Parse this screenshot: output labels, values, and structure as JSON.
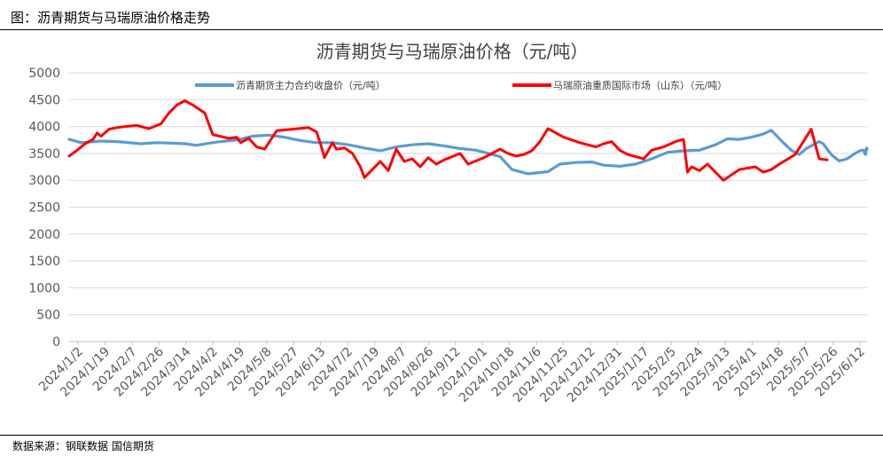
{
  "figure": {
    "caption": "图：沥青期货与马瑞原油价格走势",
    "source": "数据来源：钢联数据 国信期货"
  },
  "chart_data": {
    "type": "line",
    "title": "沥青期货与马瑞原油价格（元/吨）",
    "xlabel": "",
    "ylabel": "",
    "ylim": [
      0,
      5000
    ],
    "yticks": [
      0,
      500,
      1000,
      1500,
      2000,
      2500,
      3000,
      3500,
      4000,
      4500,
      5000
    ],
    "grid": "horizontal",
    "legend": "top",
    "x_tick_labels": [
      "2024/1/2",
      "2024/1/19",
      "2024/2/7",
      "2024/2/26",
      "2024/3/14",
      "2024/4/2",
      "2024/4/19",
      "2024/5/8",
      "2024/5/27",
      "2024/6/13",
      "2024/7/2",
      "2024/7/19",
      "2024/8/7",
      "2024/8/26",
      "2024/9/12",
      "2024/10/1",
      "2024/10/18",
      "2024/11/6",
      "2024/11/25",
      "2024/12/12",
      "2024/12/31",
      "2025/1/17",
      "2025/2/5",
      "2025/2/24",
      "2025/3/13",
      "2025/4/1",
      "2025/4/18",
      "2025/5/7",
      "2025/5/26",
      "2025/6/12"
    ],
    "series": [
      {
        "name": "沥青期货主力合约收盘价（元/吨）",
        "color": "#5b9bd5",
        "values": [
          3760,
          3700,
          3730,
          3720,
          3680,
          3700,
          3690,
          3680,
          3650,
          3690,
          3720,
          3750,
          3820,
          3840,
          3800,
          3740,
          3700,
          3700,
          3660,
          3600,
          3550,
          3620,
          3660,
          3680,
          3640,
          3590,
          3560,
          3480,
          3440,
          3200,
          3120,
          3160,
          3300,
          3330,
          3340,
          3280,
          3260,
          3300,
          3400,
          3520,
          3550,
          3560,
          3660,
          3770,
          3760,
          3800,
          3860,
          3930,
          3700,
          3560,
          3480,
          3600,
          3720,
          3680,
          3480,
          3360,
          3400,
          3500,
          3540,
          3560,
          3560,
          3500,
          3480,
          3500,
          3560,
          3600,
          3580
        ],
        "x": [
          0,
          0.015,
          0.04,
          0.06,
          0.09,
          0.11,
          0.13,
          0.145,
          0.16,
          0.175,
          0.19,
          0.21,
          0.23,
          0.25,
          0.27,
          0.29,
          0.31,
          0.33,
          0.35,
          0.37,
          0.39,
          0.41,
          0.43,
          0.45,
          0.47,
          0.49,
          0.51,
          0.53,
          0.54,
          0.555,
          0.575,
          0.6,
          0.615,
          0.635,
          0.655,
          0.67,
          0.69,
          0.71,
          0.73,
          0.75,
          0.77,
          0.79,
          0.81,
          0.825,
          0.84,
          0.855,
          0.87,
          0.88,
          0.895,
          0.905,
          0.915,
          0.925,
          0.94,
          0.945,
          0.955,
          0.965,
          0.975,
          0.985,
          0.99,
          0.993,
          0.996,
          0.997,
          0.998,
          0.9985,
          0.999,
          0.9995,
          1.0
        ]
      },
      {
        "name": "马瑞原油重质国际市场（山东）（元/吨）",
        "color": "#ff0000",
        "values": [
          3450,
          3560,
          3680,
          3760,
          3880,
          3820,
          3950,
          3980,
          4000,
          4020,
          3960,
          4050,
          4250,
          4400,
          4480,
          4400,
          4250,
          3850,
          3780,
          3800,
          3700,
          3780,
          3620,
          3580,
          3920,
          3950,
          3980,
          3900,
          3680,
          3420,
          3700,
          3580,
          3600,
          3500,
          3250,
          3050,
          3200,
          3350,
          3180,
          3580,
          3350,
          3400,
          3250,
          3420,
          3300,
          3380,
          3500,
          3300,
          3420,
          3580,
          3500,
          3450,
          3480,
          3550,
          3720,
          3960,
          3800,
          3700,
          3620,
          3680,
          3720,
          3560,
          3480,
          3400,
          3560,
          3620,
          3720,
          3760,
          3150,
          3250,
          3180,
          3300,
          3150,
          3000,
          3100,
          3200,
          3250,
          3150,
          3200,
          3300,
          3480,
          3950,
          3400,
          3380
        ],
        "x": [
          0,
          0.01,
          0.02,
          0.03,
          0.035,
          0.04,
          0.05,
          0.06,
          0.07,
          0.085,
          0.1,
          0.115,
          0.125,
          0.135,
          0.145,
          0.155,
          0.17,
          0.18,
          0.2,
          0.21,
          0.215,
          0.225,
          0.235,
          0.245,
          0.26,
          0.28,
          0.3,
          0.31,
          0.315,
          0.32,
          0.33,
          0.335,
          0.345,
          0.355,
          0.365,
          0.37,
          0.38,
          0.39,
          0.4,
          0.41,
          0.42,
          0.43,
          0.44,
          0.45,
          0.46,
          0.47,
          0.49,
          0.5,
          0.52,
          0.54,
          0.55,
          0.56,
          0.57,
          0.58,
          0.59,
          0.6,
          0.62,
          0.64,
          0.66,
          0.67,
          0.68,
          0.69,
          0.7,
          0.72,
          0.73,
          0.745,
          0.76,
          0.77,
          0.775,
          0.78,
          0.79,
          0.8,
          0.81,
          0.82,
          0.83,
          0.84,
          0.86,
          0.87,
          0.88,
          0.89,
          0.91,
          0.93,
          0.94,
          0.95
        ]
      }
    ]
  }
}
